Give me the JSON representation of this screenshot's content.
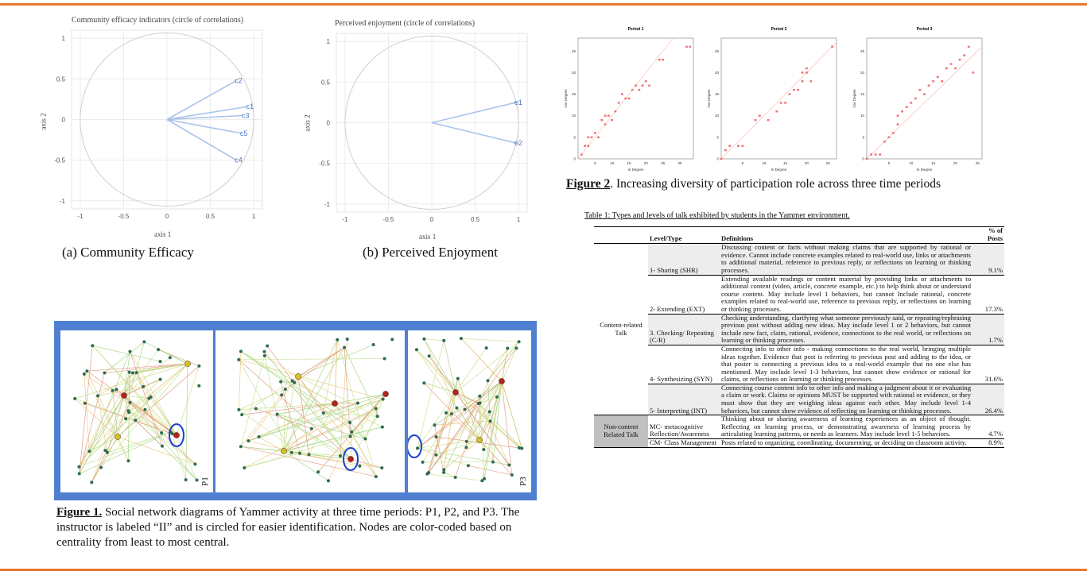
{
  "figure_a": {
    "title": "Community efficacy indicators (circle of correlations)",
    "xlabel": "axis 1",
    "ylabel": "axis 2",
    "caption": "(a)  Community Efficacy",
    "xticks": [
      "-1",
      "-0.5",
      "0",
      "0.5",
      "1"
    ],
    "yticks": [
      "1",
      "0.5",
      "0",
      "-0.5",
      "-1"
    ]
  },
  "figure_b": {
    "title": "Perceived enjoyment (circle of correlations)",
    "xlabel": "axis 1",
    "ylabel": "axis 2",
    "caption": "(b) Perceived Enjoyment",
    "xticks": [
      "-1",
      "-0.5",
      "0",
      "0.5",
      "1"
    ],
    "yticks": [
      "1",
      "0.5",
      "0",
      "-0.5",
      "-1"
    ]
  },
  "chart_data": [
    {
      "type": "scatter",
      "title": "Community efficacy indicators (circle of correlations)",
      "xlabel": "axis 1",
      "ylabel": "axis 2",
      "xlim": [
        -1.1,
        1.1
      ],
      "ylim": [
        -1.1,
        1.1
      ],
      "points": [
        {
          "label": "c2",
          "x": 0.8,
          "y": 0.48
        },
        {
          "label": "c1",
          "x": 0.93,
          "y": 0.16
        },
        {
          "label": "c3",
          "x": 0.88,
          "y": 0.05
        },
        {
          "label": "c5",
          "x": 0.86,
          "y": -0.17
        },
        {
          "label": "c4",
          "x": 0.8,
          "y": -0.5
        }
      ]
    },
    {
      "type": "scatter",
      "title": "Perceived enjoyment (circle of correlations)",
      "xlabel": "axis 1",
      "ylabel": "axis 2",
      "xlim": [
        -1.1,
        1.1
      ],
      "ylim": [
        -1.1,
        1.1
      ],
      "points": [
        {
          "label": "e1",
          "x": 0.97,
          "y": 0.25
        },
        {
          "label": "e2",
          "x": 0.97,
          "y": -0.25
        }
      ]
    },
    {
      "type": "scatter",
      "title": "Period 1",
      "xlabel": "In Degree",
      "ylabel": "Out Degree",
      "xticks": [
        "5",
        "10",
        "15",
        "20",
        "25",
        "30"
      ],
      "yticks": [
        "0",
        "5",
        "10",
        "15",
        "20",
        "25"
      ],
      "xlim": [
        0,
        34
      ],
      "ylim": [
        0,
        28
      ],
      "x": [
        1,
        2,
        3,
        3,
        4,
        5,
        6,
        7,
        8,
        8,
        9,
        10,
        11,
        12,
        13,
        14,
        15,
        16,
        17,
        18,
        19,
        20,
        21,
        24,
        25,
        32,
        33
      ],
      "y": [
        1,
        3,
        3,
        5,
        5,
        6,
        5,
        9,
        10,
        8,
        10,
        9,
        11,
        13,
        15,
        14,
        14,
        16,
        17,
        16,
        17,
        18,
        17,
        23,
        23,
        26,
        26
      ]
    },
    {
      "type": "scatter",
      "title": "Period 2",
      "xlabel": "In Degree",
      "ylabel": "Out Degree",
      "xticks": [
        "5",
        "10",
        "15",
        "20",
        "25"
      ],
      "yticks": [
        "0",
        "5",
        "10",
        "15",
        "20",
        "25"
      ],
      "xlim": [
        0,
        27
      ],
      "ylim": [
        0,
        28
      ],
      "x": [
        0,
        1,
        2,
        4,
        5,
        8,
        9,
        11,
        13,
        14,
        15,
        16,
        17,
        18,
        19,
        19,
        20,
        20,
        21,
        26,
        26
      ],
      "y": [
        0,
        2,
        3,
        3,
        3,
        9,
        10,
        9,
        11,
        13,
        13,
        15,
        16,
        16,
        18,
        20,
        20,
        21,
        18,
        26,
        26
      ]
    },
    {
      "type": "scatter",
      "title": "Period 3",
      "xlabel": "In Degree",
      "ylabel": "Out Degree",
      "xticks": [
        "5",
        "10",
        "15",
        "20",
        "25"
      ],
      "yticks": [
        "0",
        "5",
        "10",
        "15",
        "20",
        "25"
      ],
      "xlim": [
        0,
        26
      ],
      "ylim": [
        0,
        28
      ],
      "x": [
        0,
        1,
        2,
        3,
        4,
        5,
        6,
        7,
        7,
        8,
        9,
        10,
        11,
        12,
        13,
        14,
        15,
        16,
        17,
        18,
        19,
        20,
        21,
        22,
        23,
        24
      ],
      "y": [
        0,
        1,
        1,
        1,
        4,
        5,
        6,
        8,
        10,
        11,
        12,
        13,
        14,
        16,
        15,
        17,
        18,
        19,
        18,
        21,
        22,
        21,
        23,
        24,
        26,
        20
      ]
    }
  ],
  "figure2": {
    "label": "Figure 2",
    "caption": ". Increasing diversity of participation role across three time periods"
  },
  "figure1": {
    "label": "Figure 1.",
    "caption": " Social network diagrams of Yammer activity at three time periods: P1, P2, and P3. The instructor is labeled “II” and is circled for easier identification. Nodes are color-coded based on centrality from least to most central.",
    "panel_labels": [
      "P1",
      "P3"
    ]
  },
  "table1": {
    "title": "Table 1: Types and levels of talk exhibited by students in the Yammer environment.",
    "headers": [
      "",
      "Level/Type",
      "Definitions",
      "% of Posts"
    ],
    "groups": [
      {
        "category": "Content-related Talk",
        "rows": [
          {
            "level": "1- Sharing (SHR)",
            "definition": "Discussing content or facts without making claims that are supported by rational or evidence. Cannot include concrete examples related to real-world use, links or attachments to additional material, reference to previous reply, or reflections on learning or thinking processes.",
            "pct": "9.1%"
          },
          {
            "level": "2- Extending (EXT)",
            "definition": "Extending available readings or content material by providing links or attachments to additional content (video, article, concrete example, etc.) to help think about or understand course content. May include level 1 behaviors, but cannot Include rational, concrete examples related to real-world use, reference to previous reply, or reflections on learning or thinking processes.",
            "pct": "17.3%"
          },
          {
            "level": "3. Checking/ Repeating (C/R)",
            "definition": "Checking understanding, clarifying what someone previously said, or repeating/rephrasing previous post without adding new ideas. May include level 1 or 2 behaviors, but cannot include new fact, claim, rational, evidence, connections to the real world, or reflections on learning or thinking processes.",
            "pct": "1.7%"
          },
          {
            "level": "4- Synthesizing (SYN)",
            "definition": "Connecting info to other info - making connections to the real world, bringing multiple ideas together. Evidence that post is referring to previous post and adding to the idea, or that poster is connecting a previous idea to a real-world example that no one else has mentioned. May include level 1-3 behaviors, but cannot show evidence or rational for claims, or reflections on learning or thinking processes.",
            "pct": "31.6%"
          },
          {
            "level": "5- Interpreting (INT)",
            "definition": "Connecting course content info to other info and making a judgment about it or evaluating a claim or work. Claims or opinions MUST be supported with rational or evidence, or they must show that they are weighing ideas against each other. May include level 1-4 behaviors, but cannot show evidence of reflecting on learning or thinking processes.",
            "pct": "26.4%"
          }
        ]
      },
      {
        "category": "Non-content Related Talk",
        "rows": [
          {
            "level": "MC- metacognitive Reflection/Awareness",
            "definition": "Thinking about or sharing awareness of learning experiences as an object of thought. Reflecting on learning process, or demonstrating awareness of learning process by articulating learning patterns, or needs as learners. May include level 1-5 behaviors.",
            "pct": "4.7%"
          },
          {
            "level": "CM- Class Management",
            "definition": "Posts related to organizing, coordinating, documenting, or deciding on classroom activity.",
            "pct": "8.9%"
          }
        ]
      }
    ]
  },
  "colors": {
    "accent_rule": "#e8782e",
    "vector": "#a9c3ea",
    "label_blue": "#4a78c8",
    "scatter_point": "#f07070",
    "fig1_frame": "#4f7fd0",
    "instructor_circle": "#1a3fd0"
  }
}
